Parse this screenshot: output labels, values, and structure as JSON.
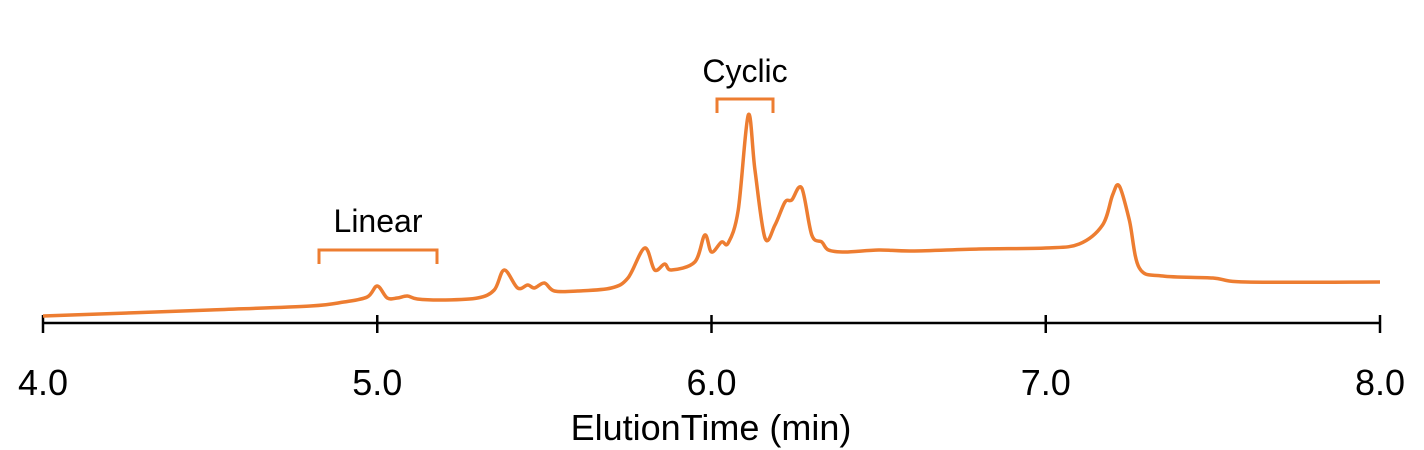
{
  "chart_data": {
    "type": "line",
    "xlabel": "ElutionTime (min)",
    "annotations": [
      "Linear",
      "Cyclic"
    ],
    "xlim": [
      4,
      8
    ],
    "xticks": [
      {
        "value": 4,
        "label": "4.0"
      },
      {
        "value": 5,
        "label": "5.0"
      },
      {
        "value": 6,
        "label": "6.0"
      },
      {
        "value": 7,
        "label": "7.0"
      },
      {
        "value": 8,
        "label": "8.0"
      }
    ],
    "series": [
      {
        "color": "#ed7d31",
        "x": [
          4.0,
          4.5,
          4.8,
          4.9,
          4.97,
          5.0,
          5.03,
          5.06,
          5.09,
          5.12,
          5.2,
          5.3,
          5.35,
          5.38,
          5.42,
          5.45,
          5.47,
          5.5,
          5.53,
          5.6,
          5.7,
          5.75,
          5.8,
          5.83,
          5.86,
          5.88,
          5.95,
          5.98,
          6.0,
          6.03,
          6.05,
          6.08,
          6.11,
          6.13,
          6.16,
          6.19,
          6.22,
          6.24,
          6.27,
          6.3,
          6.33,
          6.35,
          6.4,
          6.5,
          6.6,
          6.8,
          7.0,
          7.1,
          7.17,
          7.2,
          7.22,
          7.25,
          7.28,
          7.35,
          7.5,
          7.6,
          8.0
        ],
        "values": [
          7,
          13,
          17,
          21,
          26,
          37,
          25,
          25,
          27,
          24,
          23,
          25,
          33,
          53,
          35,
          38,
          35,
          40,
          32,
          32,
          35,
          45,
          75,
          53,
          59,
          53,
          61,
          88,
          71,
          81,
          80,
          113,
          208,
          153,
          85,
          98,
          121,
          123,
          135,
          88,
          81,
          73,
          71,
          73,
          72,
          74,
          75,
          79,
          98,
          128,
          137,
          103,
          55,
          47,
          45,
          41,
          41
        ]
      }
    ]
  }
}
